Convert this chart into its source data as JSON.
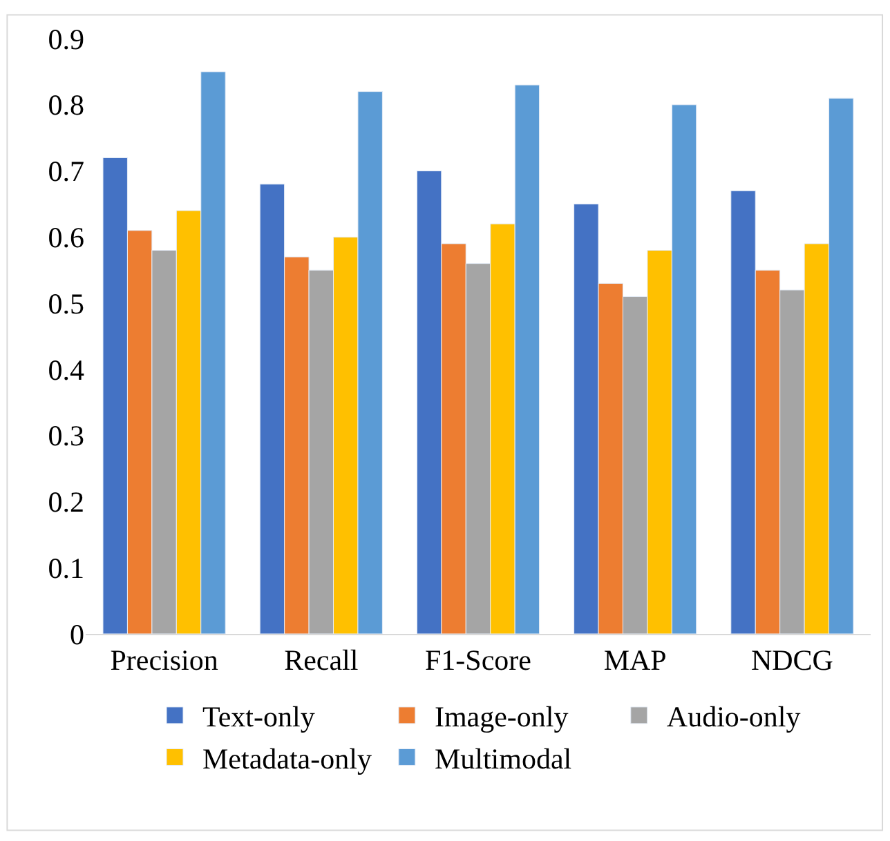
{
  "chart_data": {
    "type": "bar",
    "categories": [
      "Precision",
      "Recall",
      "F1-Score",
      "MAP",
      "NDCG"
    ],
    "series": [
      {
        "name": "Text-only",
        "color": "#4472c4",
        "values": [
          0.72,
          0.68,
          0.7,
          0.65,
          0.67
        ]
      },
      {
        "name": "Image-only",
        "color": "#ed7d31",
        "values": [
          0.61,
          0.57,
          0.59,
          0.53,
          0.55
        ]
      },
      {
        "name": "Audio-only",
        "color": "#a5a5a5",
        "values": [
          0.58,
          0.55,
          0.56,
          0.51,
          0.52
        ]
      },
      {
        "name": "Metadata-only",
        "color": "#ffc000",
        "values": [
          0.64,
          0.6,
          0.62,
          0.58,
          0.59
        ]
      },
      {
        "name": "Multimodal",
        "color": "#5b9bd5",
        "values": [
          0.85,
          0.82,
          0.83,
          0.8,
          0.81
        ]
      }
    ],
    "ylim": [
      0,
      0.9
    ],
    "yticks": [
      0,
      0.1,
      0.2,
      0.3,
      0.4,
      0.5,
      0.6,
      0.7,
      0.8,
      0.9
    ],
    "grid": false,
    "legend": "bottom"
  }
}
